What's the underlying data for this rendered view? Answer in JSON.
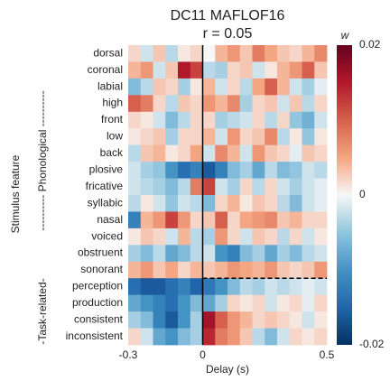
{
  "chart_data": {
    "type": "heatmap",
    "title": "DC11 MAFLOF16",
    "subtitle": "r = 0.05",
    "xlabel": "Delay (s)",
    "ylabel": "Stimulus feature",
    "groups": [
      "---------- Phonological ----------",
      "-Task-related-"
    ],
    "colorbar_label": "w",
    "rows": [
      "dorsal",
      "coronal",
      "labial",
      "high",
      "front",
      "low",
      "back",
      "plosive",
      "fricative",
      "syllabic",
      "nasal",
      "voiced",
      "obstruent",
      "sonorant",
      "perception",
      "production",
      "consistent",
      "inconsistent"
    ],
    "xlim": [
      -0.3,
      0.5
    ],
    "xticks": [
      -0.3,
      0,
      0.5
    ],
    "clim": [
      -0.02,
      0.02
    ],
    "cticks": [
      -0.02,
      0,
      0.02
    ],
    "colormap": "RdBu_r",
    "values": [
      [
        0.002,
        -0.002,
        0.003,
        -0.003,
        0.001,
        0.002,
        0,
        0.004,
        0.006,
        0.003,
        0.008,
        0.005,
        0.003,
        0.002,
        0.004,
        0.007
      ],
      [
        0.004,
        0.006,
        -0.002,
        0.003,
        0.015,
        0.012,
        -0.003,
        -0.004,
        0.002,
        0.003,
        -0.002,
        0.001,
        0.004,
        0.006,
        0.01,
        0.003
      ],
      [
        -0.006,
        -0.003,
        0.003,
        0.002,
        -0.004,
        0.001,
        0.004,
        -0.002,
        0.002,
        -0.003,
        0.005,
        0.01,
        0.004,
        -0.002,
        -0.004,
        -0.001
      ],
      [
        0.01,
        0.008,
        0.002,
        -0.003,
        0.003,
        0.002,
        0.006,
        0.004,
        0.007,
        -0.004,
        0.002,
        0.003,
        -0.002,
        0.003,
        -0.003,
        0.002
      ],
      [
        0.002,
        0.001,
        -0.002,
        -0.006,
        -0.003,
        0.002,
        0.002,
        -0.004,
        -0.003,
        -0.002,
        0.002,
        -0.003,
        0.002,
        -0.005,
        -0.007,
        -0.002
      ],
      [
        0.001,
        0.002,
        0.003,
        -0.004,
        0.002,
        0.002,
        0.004,
        -0.002,
        0.006,
        0.002,
        0.003,
        0.007,
        -0.003,
        0.001,
        -0.005,
        0.001
      ],
      [
        -0.003,
        0.003,
        0.004,
        0.001,
        0.002,
        0.005,
        -0.002,
        0.007,
        0.004,
        -0.002,
        0.006,
        0.003,
        0.002,
        -0.001,
        0.003,
        0.002
      ],
      [
        -0.002,
        -0.004,
        -0.005,
        -0.01,
        -0.014,
        -0.012,
        -0.016,
        -0.012,
        -0.006,
        -0.004,
        -0.008,
        -0.003,
        -0.006,
        -0.005,
        -0.002,
        -0.003
      ],
      [
        -0.002,
        -0.003,
        -0.004,
        -0.006,
        -0.003,
        0.008,
        0.012,
        -0.002,
        -0.004,
        0.002,
        -0.003,
        0.002,
        -0.002,
        -0.004,
        -0.002,
        -0.001
      ],
      [
        -0.003,
        0.001,
        -0.002,
        -0.005,
        -0.002,
        -0.003,
        -0.006,
        0.002,
        0.004,
        0.001,
        0.003,
        0.002,
        -0.003,
        -0.006,
        -0.002,
        -0.001
      ],
      [
        -0.012,
        0.004,
        0.006,
        0.012,
        0.006,
        0.002,
        0.003,
        0.01,
        0.002,
        0.005,
        0.006,
        0.007,
        0.003,
        0.004,
        0.002,
        0.002
      ],
      [
        0.001,
        0.003,
        0.002,
        -0.002,
        0.004,
        -0.003,
        -0.004,
        0.006,
        0.002,
        -0.002,
        0.003,
        0.002,
        -0.003,
        0.002,
        -0.002,
        0.001
      ],
      [
        -0.004,
        -0.006,
        -0.003,
        -0.008,
        -0.006,
        -0.003,
        -0.002,
        -0.01,
        -0.012,
        -0.006,
        -0.004,
        -0.008,
        -0.004,
        -0.006,
        -0.003,
        -0.002
      ],
      [
        0.004,
        0.006,
        0.003,
        0.005,
        0.002,
        0.004,
        0.003,
        0.004,
        0.006,
        0.005,
        0.004,
        0.006,
        0.003,
        0.002,
        0.003,
        0.006
      ],
      [
        -0.014,
        -0.016,
        -0.016,
        -0.014,
        -0.012,
        -0.015,
        -0.013,
        -0.01,
        -0.006,
        -0.003,
        -0.004,
        -0.002,
        -0.003,
        -0.002,
        -0.001,
        -0.002
      ],
      [
        -0.008,
        -0.01,
        -0.012,
        -0.014,
        -0.01,
        -0.006,
        -0.008,
        -0.004,
        0.002,
        0.001,
        0.002,
        -0.002,
        0.001,
        0.002,
        -0.001,
        0.002
      ],
      [
        -0.004,
        -0.006,
        -0.012,
        -0.016,
        -0.01,
        -0.004,
        0.016,
        0.01,
        0.006,
        0.004,
        0.002,
        0.003,
        0.002,
        0.001,
        -0.002,
        0.001
      ],
      [
        0.002,
        -0.002,
        -0.008,
        -0.01,
        -0.006,
        -0.004,
        0.014,
        0.008,
        0.006,
        0.003,
        -0.003,
        -0.006,
        -0.002,
        0.002,
        0.001,
        0.002
      ]
    ]
  }
}
